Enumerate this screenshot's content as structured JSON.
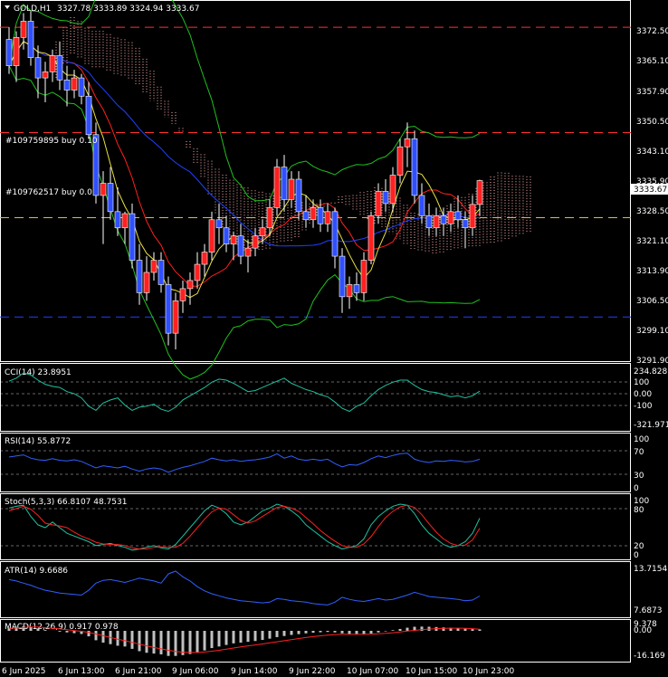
{
  "header": {
    "symbol_tf": "GOLD,H1",
    "ohlc": "3327.78 3333.89 3324.94 3333.67"
  },
  "main": {
    "price_labels": [
      "3372.50",
      "3365.10",
      "3357.90",
      "3350.50",
      "3343.10",
      "3335.90",
      "3328.50",
      "3321.10",
      "3313.90",
      "3306.50",
      "3299.10",
      "3291.90"
    ],
    "current_price": "3333.67",
    "orders": [
      "#109759895 buy 0.10",
      "#109762517 buy 0.0"
    ]
  },
  "panes": {
    "cci": {
      "title": "CCI(14) 23.8951",
      "labels": [
        "234.8281",
        "100",
        "0.00",
        "-100",
        "-321.9713"
      ]
    },
    "rsi": {
      "title": "RSI(14) 55.8772",
      "labels": [
        "100",
        "70",
        "30",
        "0"
      ]
    },
    "stoch": {
      "title": "Stoch(5,3,3) 66.8107 48.7531",
      "labels": [
        "100",
        "80",
        "20",
        "0"
      ]
    },
    "atr": {
      "title": "ATR(14) 9.6686",
      "labels": [
        "13.7154",
        "7.6873"
      ]
    },
    "macd": {
      "title": "MACD(12,26,9) 0.917 0.978",
      "labels": [
        "9.378",
        "0.00",
        "-16.169"
      ]
    }
  },
  "time_axis": [
    "6 Jun 2025",
    "6 Jun 13:00",
    "6 Jun 21:00",
    "9 Jun 06:00",
    "9 Jun 14:00",
    "9 Jun 22:00",
    "10 Jun 07:00",
    "10 Jun 15:00",
    "10 Jun 23:00"
  ],
  "colors": {
    "bull": "#ff2020",
    "bear": "#3050ff",
    "grid": "#ffffff",
    "bg": "#000000"
  },
  "chart_data": {
    "type": "candlestick",
    "title": "GOLD,H1",
    "ylim": [
      3290,
      3376
    ],
    "candles": [
      [
        3368.5,
        3371.5,
        3360.0,
        3362.0
      ],
      [
        3362.0,
        3370.5,
        3358.0,
        3369.0
      ],
      [
        3369.0,
        3375.0,
        3366.0,
        3373.0
      ],
      [
        3373.0,
        3375.5,
        3362.0,
        3364.0
      ],
      [
        3364.0,
        3367.0,
        3354.0,
        3359.0
      ],
      [
        3359.0,
        3363.0,
        3353.0,
        3360.5
      ],
      [
        3360.5,
        3366.0,
        3358.0,
        3364.5
      ],
      [
        3364.5,
        3368.0,
        3356.0,
        3358.5
      ],
      [
        3358.5,
        3362.0,
        3352.0,
        3356.0
      ],
      [
        3356.0,
        3361.0,
        3354.0,
        3359.0
      ],
      [
        3359.0,
        3360.0,
        3352.5,
        3354.5
      ],
      [
        3354.5,
        3358.0,
        3344.0,
        3345.0
      ],
      [
        3345.0,
        3348.0,
        3328.0,
        3330.0
      ],
      [
        3330.0,
        3336.0,
        3318.0,
        3333.0
      ],
      [
        3333.0,
        3337.0,
        3324.0,
        3326.0
      ],
      [
        3326.0,
        3332.0,
        3320.0,
        3322.0
      ],
      [
        3322.0,
        3326.0,
        3318.0,
        3325.5
      ],
      [
        3325.5,
        3328.0,
        3312.0,
        3314.0
      ],
      [
        3314.0,
        3318.0,
        3303.0,
        3306.0
      ],
      [
        3306.0,
        3315.0,
        3304.0,
        3311.0
      ],
      [
        3311.0,
        3316.0,
        3309.0,
        3314.0
      ],
      [
        3314.0,
        3316.0,
        3306.0,
        3308.0
      ],
      [
        3308.0,
        3310.0,
        3293.0,
        3296.0
      ],
      [
        3296.0,
        3306.0,
        3292.0,
        3304.0
      ],
      [
        3304.0,
        3309.0,
        3301.0,
        3307.0
      ],
      [
        3307.0,
        3311.0,
        3303.0,
        3309.0
      ],
      [
        3309.0,
        3316.0,
        3307.0,
        3313.0
      ],
      [
        3313.0,
        3318.0,
        3310.0,
        3316.0
      ],
      [
        3316.0,
        3326.0,
        3314.0,
        3324.0
      ],
      [
        3324.0,
        3328.0,
        3318.0,
        3322.0
      ],
      [
        3322.0,
        3325.0,
        3316.0,
        3318.0
      ],
      [
        3318.0,
        3321.0,
        3314.0,
        3320.0
      ],
      [
        3320.0,
        3323.0,
        3313.0,
        3315.0
      ],
      [
        3315.0,
        3319.0,
        3311.0,
        3317.0
      ],
      [
        3317.0,
        3322.0,
        3315.0,
        3320.0
      ],
      [
        3320.0,
        3324.0,
        3318.0,
        3322.0
      ],
      [
        3322.0,
        3329.0,
        3320.0,
        3327.0
      ],
      [
        3327.0,
        3339.0,
        3325.0,
        3337.0
      ],
      [
        3337.0,
        3340.0,
        3326.0,
        3329.0
      ],
      [
        3329.0,
        3336.0,
        3327.0,
        3334.0
      ],
      [
        3334.0,
        3336.0,
        3324.0,
        3326.0
      ],
      [
        3326.0,
        3330.0,
        3322.0,
        3324.0
      ],
      [
        3324.0,
        3329.0,
        3322.0,
        3327.0
      ],
      [
        3327.0,
        3329.0,
        3321.0,
        3323.0
      ],
      [
        3323.0,
        3328.0,
        3321.0,
        3326.0
      ],
      [
        3326.0,
        3327.0,
        3312.0,
        3315.0
      ],
      [
        3315.0,
        3317.0,
        3301.0,
        3305.0
      ],
      [
        3305.0,
        3310.0,
        3302.0,
        3308.0
      ],
      [
        3308.0,
        3311.0,
        3304.0,
        3306.0
      ],
      [
        3306.0,
        3316.0,
        3304.0,
        3314.0
      ],
      [
        3314.0,
        3326.0,
        3313.0,
        3325.0
      ],
      [
        3325.0,
        3333.0,
        3323.0,
        3331.0
      ],
      [
        3331.0,
        3334.0,
        3326.0,
        3328.0
      ],
      [
        3328.0,
        3337.0,
        3326.0,
        3335.0
      ],
      [
        3335.0,
        3344.0,
        3333.0,
        3342.0
      ],
      [
        3342.0,
        3348.0,
        3337.0,
        3344.0
      ],
      [
        3344.0,
        3346.0,
        3328.0,
        3330.0
      ],
      [
        3330.0,
        3333.0,
        3323.0,
        3325.0
      ],
      [
        3325.0,
        3328.0,
        3320.0,
        3322.0
      ],
      [
        3322.0,
        3327.0,
        3320.0,
        3325.0
      ],
      [
        3325.0,
        3327.0,
        3320.0,
        3323.0
      ],
      [
        3323.0,
        3328.0,
        3321.0,
        3326.0
      ],
      [
        3326.0,
        3330.0,
        3322.0,
        3324.0
      ],
      [
        3324.0,
        3326.0,
        3317.0,
        3322.0
      ],
      [
        3322.0,
        3330.0,
        3320.0,
        3327.78
      ],
      [
        3327.78,
        3333.89,
        3324.94,
        3333.67
      ]
    ],
    "x_labels": [
      "6 Jun 2025",
      "6 Jun 13:00",
      "6 Jun 21:00",
      "9 Jun 06:00",
      "9 Jun 14:00",
      "9 Jun 22:00",
      "10 Jun 07:00",
      "10 Jun 15:00",
      "10 Jun 23:00"
    ],
    "levels": {
      "red_dashed": [
        3371.5,
        3345.5
      ],
      "yellow_dashed": 3324.5,
      "blue_dashed": 3300.0
    },
    "indicators": {
      "cci": [
        120,
        150,
        200,
        180,
        130,
        90,
        70,
        60,
        20,
        0,
        -40,
        -120,
        -160,
        -90,
        -60,
        -40,
        -110,
        -160,
        -130,
        -120,
        -100,
        -150,
        -170,
        -130,
        -60,
        -20,
        20,
        60,
        110,
        140,
        130,
        100,
        60,
        20,
        30,
        60,
        90,
        120,
        150,
        100,
        70,
        40,
        20,
        -10,
        -30,
        -80,
        -140,
        -170,
        -120,
        -90,
        -20,
        40,
        80,
        110,
        130,
        130,
        80,
        40,
        20,
        10,
        -10,
        -30,
        -20,
        -40,
        -20,
        24
      ],
      "rsi": [
        60,
        62,
        64,
        58,
        55,
        54,
        57,
        54,
        53,
        55,
        52,
        46,
        40,
        44,
        42,
        40,
        43,
        38,
        34,
        38,
        40,
        38,
        32,
        37,
        41,
        44,
        48,
        52,
        58,
        55,
        53,
        55,
        52,
        54,
        55,
        57,
        60,
        66,
        58,
        62,
        56,
        54,
        56,
        54,
        56,
        48,
        42,
        46,
        45,
        50,
        57,
        62,
        59,
        63,
        66,
        67,
        56,
        52,
        50,
        53,
        52,
        54,
        53,
        51,
        52,
        56
      ],
      "stoch_k": [
        85,
        88,
        90,
        70,
        55,
        50,
        60,
        50,
        40,
        35,
        30,
        25,
        18,
        20,
        22,
        18,
        15,
        10,
        12,
        15,
        18,
        14,
        12,
        20,
        35,
        50,
        65,
        80,
        90,
        85,
        75,
        60,
        55,
        60,
        70,
        80,
        85,
        92,
        88,
        80,
        70,
        55,
        45,
        35,
        25,
        18,
        12,
        15,
        18,
        30,
        55,
        70,
        80,
        88,
        92,
        90,
        75,
        55,
        40,
        30,
        20,
        15,
        18,
        25,
        40,
        67
      ],
      "stoch_d": [
        80,
        84,
        88,
        83,
        72,
        58,
        55,
        53,
        50,
        42,
        35,
        30,
        24,
        21,
        20,
        20,
        18,
        14,
        12,
        12,
        15,
        16,
        15,
        15,
        22,
        35,
        50,
        65,
        78,
        85,
        83,
        73,
        63,
        58,
        62,
        70,
        78,
        86,
        88,
        85,
        79,
        68,
        57,
        45,
        35,
        26,
        18,
        15,
        15,
        21,
        34,
        52,
        68,
        79,
        87,
        90,
        86,
        73,
        57,
        42,
        30,
        22,
        18,
        19,
        28,
        49
      ],
      "atr": [
        12.0,
        11.8,
        11.5,
        11.2,
        10.8,
        10.5,
        10.3,
        10.1,
        10.0,
        9.9,
        9.8,
        10.5,
        11.5,
        11.9,
        12.0,
        11.8,
        11.6,
        11.9,
        12.2,
        12.0,
        11.8,
        11.5,
        12.8,
        13.2,
        12.4,
        11.8,
        11.0,
        10.4,
        10.0,
        9.7,
        9.4,
        9.2,
        9.0,
        8.9,
        8.8,
        8.7,
        8.8,
        9.3,
        9.2,
        9.0,
        8.9,
        8.8,
        8.6,
        8.5,
        8.4,
        8.8,
        9.5,
        9.2,
        9.0,
        8.9,
        9.1,
        9.3,
        9.1,
        9.2,
        9.5,
        9.8,
        10.2,
        9.9,
        9.6,
        9.5,
        9.4,
        9.3,
        9.2,
        9.0,
        9.1,
        9.67
      ],
      "macd": [
        2,
        2.5,
        3,
        2.5,
        1.5,
        0.5,
        0,
        -0.5,
        -1,
        -1.5,
        -2,
        -3.5,
        -6,
        -7.5,
        -8.5,
        -9.5,
        -10,
        -11.5,
        -13,
        -14,
        -14.5,
        -15,
        -16,
        -16,
        -15.5,
        -14.8,
        -13.8,
        -12.5,
        -11,
        -10,
        -9,
        -8,
        -7.5,
        -7,
        -6.5,
        -5.8,
        -5,
        -4,
        -3.3,
        -2.6,
        -2.1,
        -1.6,
        -1.2,
        -0.9,
        -0.7,
        -1,
        -1.6,
        -2,
        -2.2,
        -2.1,
        -1.7,
        -1,
        -0.3,
        0.4,
        1.2,
        2,
        2.6,
        2.7,
        2.6,
        2.4,
        2.2,
        2.0,
        1.8,
        1.4,
        1.1,
        0.917
      ],
      "macd_signal": [
        1.5,
        1.8,
        2.2,
        2.5,
        2.4,
        2.0,
        1.6,
        1.2,
        0.7,
        0.2,
        -0.3,
        -1.0,
        -2.0,
        -3.1,
        -4.2,
        -5.3,
        -6.3,
        -7.4,
        -8.5,
        -9.6,
        -10.6,
        -11.5,
        -12.4,
        -13.1,
        -13.6,
        -13.8,
        -13.8,
        -13.5,
        -13.0,
        -12.4,
        -11.7,
        -11.0,
        -10.3,
        -9.6,
        -9.0,
        -8.4,
        -7.7,
        -7.0,
        -6.3,
        -5.6,
        -4.9,
        -4.3,
        -3.7,
        -3.2,
        -2.7,
        -2.4,
        -2.2,
        -2.2,
        -2.2,
        -2.2,
        -2.1,
        -1.9,
        -1.6,
        -1.2,
        -0.7,
        -0.2,
        0.3,
        0.8,
        1.1,
        1.4,
        1.6,
        1.7,
        1.7,
        1.6,
        1.4,
        0.978
      ]
    }
  }
}
